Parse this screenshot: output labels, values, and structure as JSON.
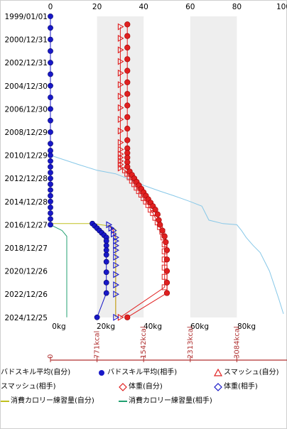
{
  "colors": {
    "badskill_self": "#88c8e8",
    "badskill_opp": "#1818c8",
    "smash_self": "#e02020",
    "smash_opp": "#e02020",
    "weight_self": "#e02020",
    "weight_opp": "#1818c8",
    "calorie_self": "#c0c020",
    "calorie_opp": "#20a070",
    "kcal_axis": "#b03030",
    "grid_band": "#eeeeee"
  },
  "chart_data": {
    "type": "scatter",
    "y_dates": [
      "1999/01/01",
      "2000/12/31",
      "2002/12/31",
      "2004/12/30",
      "2006/12/30",
      "2008/12/29",
      "2010/12/29",
      "2012/12/28",
      "2014/12/28",
      "2016/12/27",
      "2018/12/27",
      "2020/12/26",
      "2022/12/26",
      "2024/12/25"
    ],
    "x_top_ticks": [
      "0",
      "20",
      "40",
      "60",
      "80",
      "100"
    ],
    "x_kg_ticks": [
      "0kg",
      "20kg",
      "40kg",
      "60kg",
      "80kg"
    ],
    "x_kcal_ticks": [
      "0",
      "771kcal",
      "1542kcal",
      "2313kcal",
      "3084kcal"
    ],
    "xlim": [
      0,
      100
    ],
    "shaded_bands": [
      [
        20,
        40
      ],
      [
        60,
        80
      ]
    ],
    "series": [
      {
        "name": "バドスキル平均(自分)",
        "style": "line",
        "points": [
          [
            0,
            2011.0
          ],
          [
            6,
            2011.4
          ],
          [
            12,
            2011.8
          ],
          [
            20,
            2012.3
          ],
          [
            28,
            2012.6
          ],
          [
            33,
            2013.0
          ],
          [
            40,
            2013.6
          ],
          [
            47,
            2014.1
          ],
          [
            53,
            2014.5
          ],
          [
            60,
            2015.0
          ],
          [
            65,
            2015.4
          ],
          [
            68,
            2016.6
          ],
          [
            74,
            2016.9
          ],
          [
            80,
            2017.0
          ],
          [
            82,
            2017.5
          ],
          [
            84,
            2018.1
          ],
          [
            87,
            2018.8
          ],
          [
            90,
            2019.4
          ],
          [
            92,
            2020.2
          ],
          [
            94,
            2021.0
          ],
          [
            96,
            2022.2
          ],
          [
            98,
            2023.4
          ],
          [
            100,
            2024.7
          ]
        ]
      },
      {
        "name": "バドスキル平均(相手)",
        "style": "marker",
        "points": [
          [
            0,
            1999.0
          ],
          [
            0,
            2000.0
          ],
          [
            0,
            2001.0
          ],
          [
            0,
            2002.0
          ],
          [
            0,
            2003.0
          ],
          [
            0,
            2004.0
          ],
          [
            0,
            2005.0
          ],
          [
            0,
            2006.0
          ],
          [
            0,
            2007.0
          ],
          [
            0,
            2008.0
          ],
          [
            0,
            2009.0
          ],
          [
            0,
            2010.0
          ],
          [
            0,
            2010.6
          ],
          [
            0,
            2011.0
          ],
          [
            0,
            2011.5
          ],
          [
            0,
            2012.0
          ],
          [
            0,
            2012.5
          ],
          [
            0,
            2013.0
          ],
          [
            0,
            2013.5
          ],
          [
            0,
            2014.0
          ],
          [
            0,
            2014.5
          ],
          [
            0,
            2015.0
          ],
          [
            0,
            2015.5
          ],
          [
            0,
            2016.0
          ],
          [
            0,
            2016.5
          ],
          [
            0,
            2017.0
          ]
        ]
      },
      {
        "name": "スマッシュ(自分)",
        "style": "marker",
        "points": [
          [
            30,
            1999.9
          ],
          [
            30,
            2000.9
          ],
          [
            30,
            2001.9
          ],
          [
            30,
            2002.9
          ],
          [
            30,
            2003.9
          ],
          [
            30,
            2004.9
          ],
          [
            30,
            2005.9
          ],
          [
            30,
            2006.9
          ],
          [
            30,
            2007.9
          ],
          [
            30,
            2008.9
          ],
          [
            30,
            2009.9
          ],
          [
            30,
            2010.5
          ],
          [
            30,
            2010.9
          ],
          [
            30,
            2011.2
          ],
          [
            30,
            2011.5
          ],
          [
            30,
            2011.8
          ],
          [
            30,
            2012.1
          ],
          [
            32,
            2012.3
          ],
          [
            33,
            2012.6
          ],
          [
            34,
            2012.9
          ],
          [
            35,
            2013.2
          ],
          [
            36,
            2013.5
          ],
          [
            37,
            2013.8
          ],
          [
            38,
            2014.1
          ],
          [
            39,
            2014.4
          ],
          [
            40,
            2014.7
          ],
          [
            41,
            2015.0
          ],
          [
            42,
            2015.3
          ],
          [
            43,
            2015.7
          ],
          [
            44,
            2016.0
          ],
          [
            45,
            2016.4
          ],
          [
            46,
            2016.8
          ],
          [
            47,
            2017.2
          ],
          [
            48,
            2017.6
          ],
          [
            48.5,
            2018.1
          ],
          [
            49,
            2018.7
          ],
          [
            49,
            2019.3
          ],
          [
            49,
            2020.0
          ],
          [
            49,
            2020.7
          ],
          [
            49,
            2021.5
          ],
          [
            49,
            2022.4
          ],
          [
            30,
            2025.0
          ]
        ]
      },
      {
        "name": "スマッシュ(相手)",
        "style": "marker",
        "points": [
          [
            25,
            2017.0
          ],
          [
            26,
            2017.3
          ],
          [
            27,
            2017.5
          ],
          [
            27,
            2017.8
          ],
          [
            28,
            2018.1
          ],
          [
            28,
            2018.4
          ],
          [
            28,
            2018.8
          ],
          [
            28,
            2019.2
          ],
          [
            28,
            2019.8
          ],
          [
            28,
            2020.5
          ],
          [
            28,
            2021.3
          ],
          [
            28,
            2022.2
          ],
          [
            28,
            2023.0
          ],
          [
            28,
            2025.0
          ]
        ]
      },
      {
        "name": "体重(自分)",
        "style": "marker",
        "points": [
          [
            33,
            1999.7
          ],
          [
            33,
            2000.7
          ],
          [
            33,
            2001.7
          ],
          [
            33,
            2002.7
          ],
          [
            33,
            2003.7
          ],
          [
            33,
            2004.7
          ],
          [
            33,
            2005.7
          ],
          [
            33,
            2006.7
          ],
          [
            33,
            2007.7
          ],
          [
            33,
            2008.7
          ],
          [
            33,
            2009.7
          ],
          [
            33,
            2010.4
          ],
          [
            33,
            2010.8
          ],
          [
            33,
            2011.2
          ],
          [
            33,
            2011.6
          ],
          [
            33,
            2012.0
          ],
          [
            34,
            2012.4
          ],
          [
            35,
            2012.7
          ],
          [
            36,
            2013.0
          ],
          [
            37,
            2013.3
          ],
          [
            38,
            2013.6
          ],
          [
            39,
            2013.9
          ],
          [
            40,
            2014.2
          ],
          [
            41,
            2014.5
          ],
          [
            42,
            2014.8
          ],
          [
            43,
            2015.1
          ],
          [
            44,
            2015.4
          ],
          [
            45,
            2015.7
          ],
          [
            46,
            2016.1
          ],
          [
            46.5,
            2016.6
          ],
          [
            47,
            2017.0
          ],
          [
            48,
            2017.5
          ],
          [
            49,
            2018.0
          ],
          [
            49.5,
            2018.5
          ],
          [
            50,
            2019.2
          ],
          [
            50,
            2020.0
          ],
          [
            50,
            2021.0
          ],
          [
            50,
            2022.0
          ],
          [
            50,
            2022.9
          ],
          [
            33,
            2025.0
          ]
        ]
      },
      {
        "name": "体重(相手)",
        "style": "marker",
        "points": [
          [
            18,
            2016.9
          ],
          [
            19,
            2017.1
          ],
          [
            20,
            2017.3
          ],
          [
            21,
            2017.5
          ],
          [
            22,
            2017.7
          ],
          [
            23,
            2017.9
          ],
          [
            24,
            2018.1
          ],
          [
            24,
            2018.4
          ],
          [
            24,
            2018.8
          ],
          [
            24,
            2019.2
          ],
          [
            24,
            2019.6
          ],
          [
            24,
            2020.2
          ],
          [
            24,
            2021.1
          ],
          [
            24,
            2022.0
          ],
          [
            24,
            2022.9
          ],
          [
            20,
            2025.0
          ]
        ]
      },
      {
        "name": "消費カロリー練習量(自分)",
        "style": "line",
        "points": [
          [
            0,
            2016.9
          ],
          [
            18,
            2016.9
          ],
          [
            25,
            2017.1
          ],
          [
            28,
            2017.4
          ],
          [
            28,
            2025.0
          ]
        ]
      },
      {
        "name": "消費カロリー練習量(相手)",
        "style": "line",
        "points": [
          [
            0,
            2017.0
          ],
          [
            5,
            2017.5
          ],
          [
            7,
            2018.0
          ],
          [
            7,
            2019.0
          ],
          [
            7,
            2025.0
          ]
        ]
      }
    ]
  },
  "legend": {
    "items": [
      {
        "label": "バドスキル平均(自分)",
        "marker": "line",
        "color": "#88c8e8"
      },
      {
        "label": "バドスキル平均(相手)",
        "marker": "circle",
        "color": "#1818c8"
      },
      {
        "label": "スマッシュ(自分)",
        "marker": "triangle",
        "color": "#e02020"
      },
      {
        "label": "スマッシュ(相手)",
        "marker": "line",
        "color": "#e02020"
      },
      {
        "label": "体重(自分)",
        "marker": "diamond",
        "color": "#e02020"
      },
      {
        "label": "体重(相手)",
        "marker": "diamond",
        "color": "#1818c8"
      },
      {
        "label": "消費カロリー練習量(自分)",
        "marker": "line",
        "color": "#c0c020"
      },
      {
        "label": "消費カロリー練習量(相手)",
        "marker": "line",
        "color": "#20a070"
      }
    ]
  }
}
